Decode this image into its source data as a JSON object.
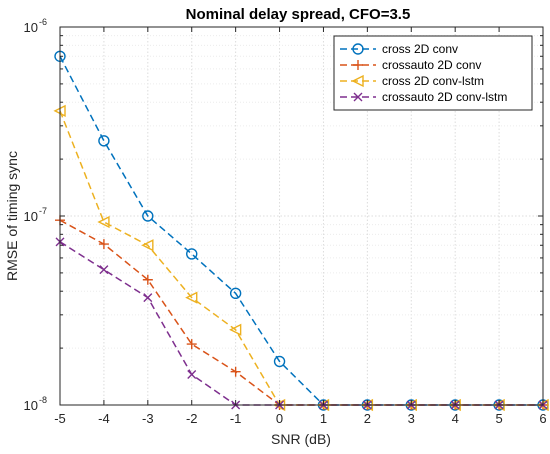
{
  "chart_data": {
    "type": "line",
    "title": "Nominal delay spread, CFO=3.5",
    "xlabel": "SNR (dB)",
    "ylabel": "RMSE of timing sync",
    "xlim": [
      -5,
      6
    ],
    "ylim": [
      1e-08,
      1e-06
    ],
    "yscale": "log",
    "grid": true,
    "legend_position": "top-right",
    "x": [
      -5,
      -4,
      -3,
      -2,
      -1,
      0,
      1,
      2,
      3,
      4,
      5,
      6
    ],
    "x_tick_labels": [
      "-5",
      "-4",
      "-3",
      "-2",
      "-1",
      "0",
      "1",
      "2",
      "3",
      "4",
      "5",
      "6"
    ],
    "y_tick_labels": [
      {
        "value": 1e-08,
        "base": "10",
        "exp": "-8"
      },
      {
        "value": 1e-07,
        "base": "10",
        "exp": "-7"
      },
      {
        "value": 1e-06,
        "base": "10",
        "exp": "-6"
      }
    ],
    "series": [
      {
        "name": "cross 2D conv",
        "color": "#0072BD",
        "marker": "circle",
        "values": [
          7e-07,
          2.5e-07,
          1e-07,
          6.3e-08,
          3.9e-08,
          1.7e-08,
          1e-08,
          1e-08,
          1e-08,
          1e-08,
          1e-08,
          1e-08
        ]
      },
      {
        "name": "crossauto 2D conv",
        "color": "#D95319",
        "marker": "plus",
        "values": [
          9.5e-08,
          7.1e-08,
          4.6e-08,
          2.1e-08,
          1.5e-08,
          1e-08,
          1e-08,
          1e-08,
          1e-08,
          1e-08,
          1e-08,
          1e-08
        ]
      },
      {
        "name": "cross 2D conv-lstm",
        "color": "#EDB120",
        "marker": "triangle-left",
        "values": [
          3.6e-07,
          9.3e-08,
          7e-08,
          3.7e-08,
          2.5e-08,
          1e-08,
          1e-08,
          1e-08,
          1e-08,
          1e-08,
          1e-08,
          1e-08
        ]
      },
      {
        "name": "crossauto 2D conv-lstm",
        "color": "#7E2F8E",
        "marker": "x",
        "values": [
          7.3e-08,
          5.2e-08,
          3.7e-08,
          1.45e-08,
          1e-08,
          1e-08,
          1e-08,
          1e-08,
          1e-08,
          1e-08,
          1e-08,
          1e-08
        ]
      }
    ]
  }
}
